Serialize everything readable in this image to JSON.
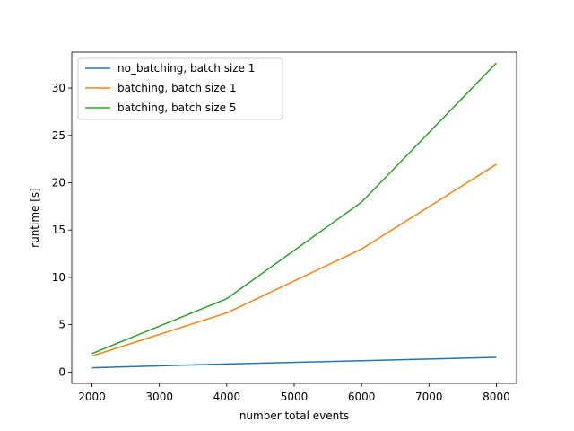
{
  "chart_data": {
    "type": "line",
    "title": "",
    "xlabel": "number total events",
    "ylabel": "runtime [s]",
    "xlim": [
      1700,
      8300
    ],
    "ylim": [
      -1.2,
      33.8
    ],
    "xticks": [
      2000,
      3000,
      4000,
      5000,
      6000,
      7000,
      8000
    ],
    "yticks": [
      0,
      5,
      10,
      15,
      20,
      25,
      30
    ],
    "grid": false,
    "legend_position": "top-left",
    "x": [
      2000,
      4000,
      6000,
      8000
    ],
    "series": [
      {
        "name": "no_batching, batch size 1",
        "color": "#1f77b4",
        "values": [
          0.45,
          0.85,
          1.2,
          1.55
        ]
      },
      {
        "name": "batching, batch size 1",
        "color": "#ff7f0e",
        "values": [
          1.7,
          6.25,
          13.0,
          21.95
        ]
      },
      {
        "name": "batching, batch size 5",
        "color": "#2ca02c",
        "values": [
          1.95,
          7.75,
          17.95,
          32.65
        ]
      }
    ]
  }
}
